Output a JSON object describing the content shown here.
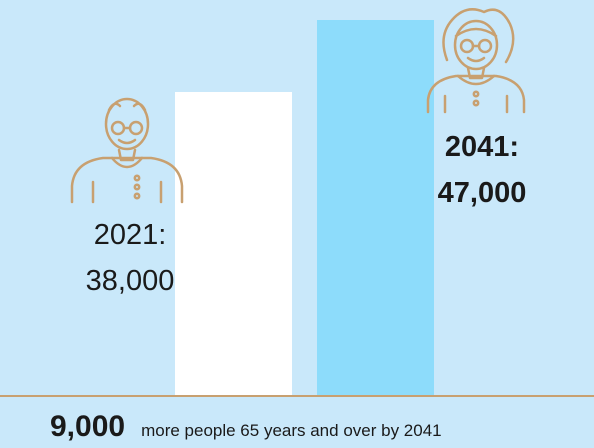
{
  "chart_data": {
    "type": "bar",
    "categories": [
      "2021",
      "2041"
    ],
    "values": [
      38000,
      47000
    ],
    "value_labels": [
      "38,000",
      "47,000"
    ],
    "bar_colors": [
      "#ffffff",
      "#8ddcfb"
    ],
    "title": "",
    "xlabel": "",
    "ylabel": "",
    "ylim": [
      0,
      47000
    ],
    "grid": false
  },
  "labels": {
    "y2021_year": "2021:",
    "y2021_value": "38,000",
    "y2041_year": "2041:",
    "y2041_value": "47,000"
  },
  "footer": {
    "number": "9,000",
    "text": "more people 65 years and over by 2041"
  },
  "colors": {
    "background": "#c9e8fa",
    "axis": "#c8a070",
    "icon": "#c8a070",
    "bar_2021": "#ffffff",
    "bar_2041": "#8ddcfb"
  },
  "icons": {
    "y2021": "elderly-man-icon",
    "y2041": "elderly-woman-icon"
  }
}
